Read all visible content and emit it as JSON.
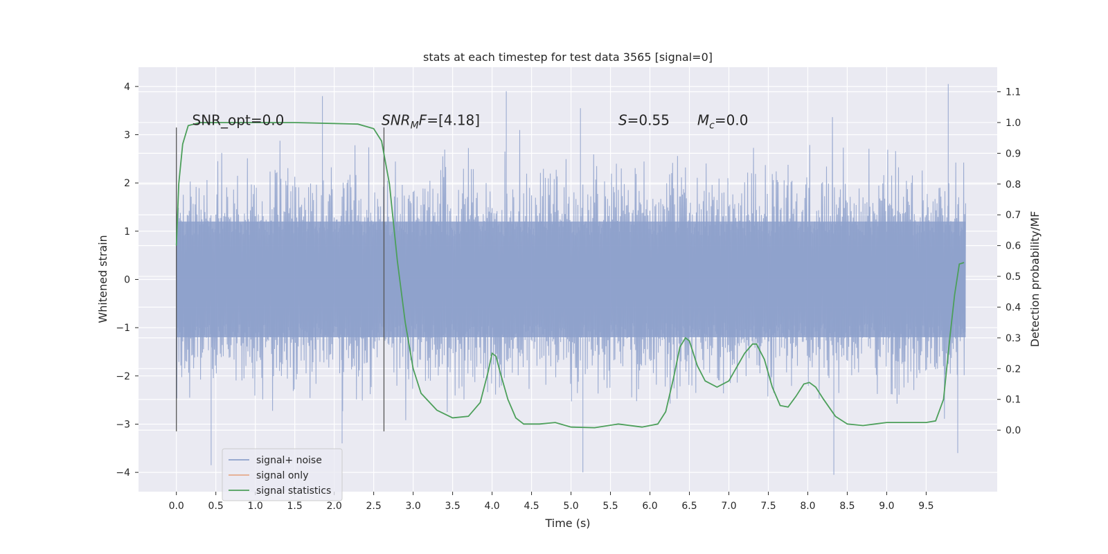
{
  "chart_data": {
    "type": "line",
    "title": "stats at each timestep for test data 3565 [signal=0]",
    "xlabel": "Time (s)",
    "ylabel": "Whitened strain",
    "ylabel_right": "Detection probability/MF",
    "xlim": [
      -0.48,
      10.4
    ],
    "ylim": [
      -4.4,
      4.4
    ],
    "ylim_right": [
      -0.2,
      1.18
    ],
    "x_ticks": [
      0.0,
      0.5,
      1.0,
      1.5,
      2.0,
      2.5,
      3.0,
      3.5,
      4.0,
      4.5,
      5.0,
      5.5,
      6.0,
      6.5,
      7.0,
      7.5,
      8.0,
      8.5,
      9.0,
      9.5
    ],
    "x_tick_labels": [
      "0.0",
      "0.5",
      "1.0",
      "1.5",
      "2.0",
      "2.5",
      "3.0",
      "3.5",
      "4.0",
      "4.5",
      "5.0",
      "5.5",
      "6.0",
      "6.5",
      "7.0",
      "7.5",
      "8.0",
      "8.5",
      "9.0",
      "9.5"
    ],
    "y_ticks": [
      -4,
      -3,
      -2,
      -1,
      0,
      1,
      2,
      3,
      4
    ],
    "y_tick_labels": [
      "−4",
      "−3",
      "−2",
      "−1",
      "0",
      "1",
      "2",
      "3",
      "4"
    ],
    "y_ticks_right": [
      0.0,
      0.1,
      0.2,
      0.3,
      0.4,
      0.5,
      0.6,
      0.7,
      0.8,
      0.9,
      1.0,
      1.1
    ],
    "y_tick_labels_right": [
      "0.0",
      "0.1",
      "0.2",
      "0.3",
      "0.4",
      "0.5",
      "0.6",
      "0.7",
      "0.8",
      "0.9",
      "1.0",
      "1.1"
    ],
    "grid": true,
    "legend": {
      "placement": "lower-left",
      "entries": [
        {
          "label": "signal+ noise",
          "color": "#8da0cb"
        },
        {
          "label": "signal only",
          "color": "#e5a98a"
        },
        {
          "label": "signal statistics",
          "color": "#4c9f5a"
        }
      ]
    },
    "series": [
      {
        "name": "signal+ noise",
        "axis": "left",
        "style": "dense-noise",
        "color": "#8da0cb",
        "x_range": [
          0.0,
          10.0
        ],
        "typical_range": [
          -2.4,
          2.4
        ],
        "extremes": [
          {
            "x": 0.44,
            "y": -3.85
          },
          {
            "x": 1.85,
            "y": 3.8
          },
          {
            "x": 2.1,
            "y": -3.4
          },
          {
            "x": 4.18,
            "y": 3.9
          },
          {
            "x": 5.15,
            "y": -4.0
          },
          {
            "x": 5.12,
            "y": 3.55
          },
          {
            "x": 8.33,
            "y": -4.05
          },
          {
            "x": 9.78,
            "y": 4.05
          },
          {
            "x": 9.9,
            "y": -3.6
          }
        ]
      },
      {
        "name": "signal statistics",
        "axis": "right",
        "color": "#4c9f5a",
        "x": [
          0.0,
          0.03,
          0.08,
          0.15,
          0.3,
          0.6,
          1.0,
          1.5,
          2.0,
          2.3,
          2.5,
          2.6,
          2.7,
          2.8,
          2.9,
          3.0,
          3.1,
          3.3,
          3.5,
          3.7,
          3.85,
          3.95,
          4.0,
          4.05,
          4.1,
          4.2,
          4.3,
          4.4,
          4.6,
          4.8,
          5.0,
          5.3,
          5.6,
          5.9,
          6.1,
          6.2,
          6.3,
          6.38,
          6.45,
          6.5,
          6.6,
          6.7,
          6.85,
          7.0,
          7.2,
          7.3,
          7.35,
          7.45,
          7.55,
          7.65,
          7.75,
          7.85,
          7.95,
          8.02,
          8.1,
          8.2,
          8.35,
          8.5,
          8.7,
          9.0,
          9.3,
          9.5,
          9.62,
          9.72,
          9.8,
          9.86,
          9.92,
          9.98
        ],
        "y": [
          0.6,
          0.8,
          0.93,
          0.99,
          1.0,
          1.0,
          1.0,
          1.0,
          0.997,
          0.995,
          0.98,
          0.94,
          0.8,
          0.55,
          0.35,
          0.2,
          0.12,
          0.065,
          0.04,
          0.045,
          0.09,
          0.19,
          0.25,
          0.24,
          0.19,
          0.1,
          0.04,
          0.02,
          0.02,
          0.025,
          0.01,
          0.008,
          0.02,
          0.01,
          0.02,
          0.06,
          0.17,
          0.27,
          0.3,
          0.29,
          0.21,
          0.16,
          0.14,
          0.16,
          0.25,
          0.28,
          0.28,
          0.23,
          0.14,
          0.08,
          0.075,
          0.11,
          0.15,
          0.155,
          0.14,
          0.1,
          0.045,
          0.02,
          0.015,
          0.025,
          0.025,
          0.025,
          0.03,
          0.1,
          0.3,
          0.44,
          0.54,
          0.545
        ]
      }
    ],
    "vertical_lines": [
      {
        "x": 0.0,
        "ymin": -3.15,
        "ymax": 3.15,
        "color": "#555555"
      },
      {
        "x": 2.63,
        "ymin": -3.15,
        "ymax": 3.15,
        "color": "#555555"
      }
    ],
    "annotations": [
      {
        "x": 0.2,
        "y": 3.2,
        "plain": "SNR_opt=0.0"
      },
      {
        "x": 2.6,
        "y": 3.2,
        "italic": "SNR",
        "sub": "M",
        "italic2": "F",
        "rest": "=[4.18]"
      },
      {
        "x": 5.6,
        "y": 3.2,
        "italic": "S",
        "rest": "=0.55"
      },
      {
        "x": 6.6,
        "y": 3.2,
        "italic": "M",
        "sub": "c",
        "rest": "=0.0"
      }
    ]
  }
}
